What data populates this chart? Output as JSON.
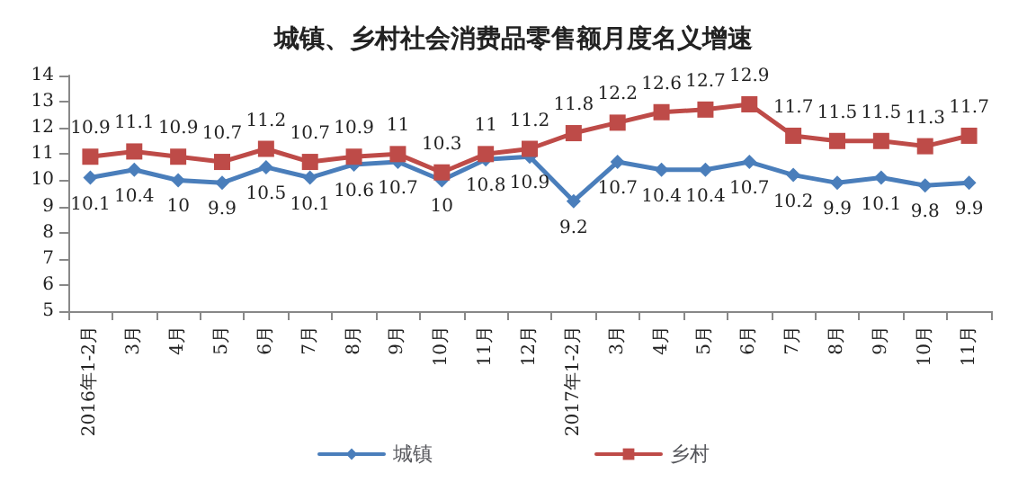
{
  "chart_data": {
    "type": "line",
    "title": "城镇、乡村社会消费品零售额月度名义增速",
    "categories": [
      "2016年1-2月",
      "3月",
      "4月",
      "5月",
      "6月",
      "7月",
      "8月",
      "9月",
      "10月",
      "11月",
      "12月",
      "2017年1-2月",
      "3月",
      "4月",
      "5月",
      "6月",
      "7月",
      "8月",
      "9月",
      "10月",
      "11月"
    ],
    "series": [
      {
        "name": "城镇",
        "color": "#4a7ebb",
        "marker": "diamond",
        "values": [
          10.1,
          10.4,
          10,
          9.9,
          10.5,
          10.1,
          10.6,
          10.7,
          10,
          10.8,
          10.9,
          9.2,
          10.7,
          10.4,
          10.4,
          10.7,
          10.2,
          9.9,
          10.1,
          9.8,
          9.9
        ]
      },
      {
        "name": "乡村",
        "color": "#be4b48",
        "marker": "square",
        "values": [
          10.9,
          11.1,
          10.9,
          10.7,
          11.2,
          10.7,
          10.9,
          11,
          10.3,
          11,
          11.2,
          11.8,
          12.2,
          12.6,
          12.7,
          12.9,
          11.7,
          11.5,
          11.5,
          11.3,
          11.7
        ]
      }
    ],
    "ylim": [
      5,
      14
    ],
    "yticks": [
      5,
      6,
      7,
      8,
      9,
      10,
      11,
      12,
      13,
      14
    ],
    "grid": false,
    "legend": "bottom",
    "data_labels": true,
    "line_style": "solid"
  }
}
